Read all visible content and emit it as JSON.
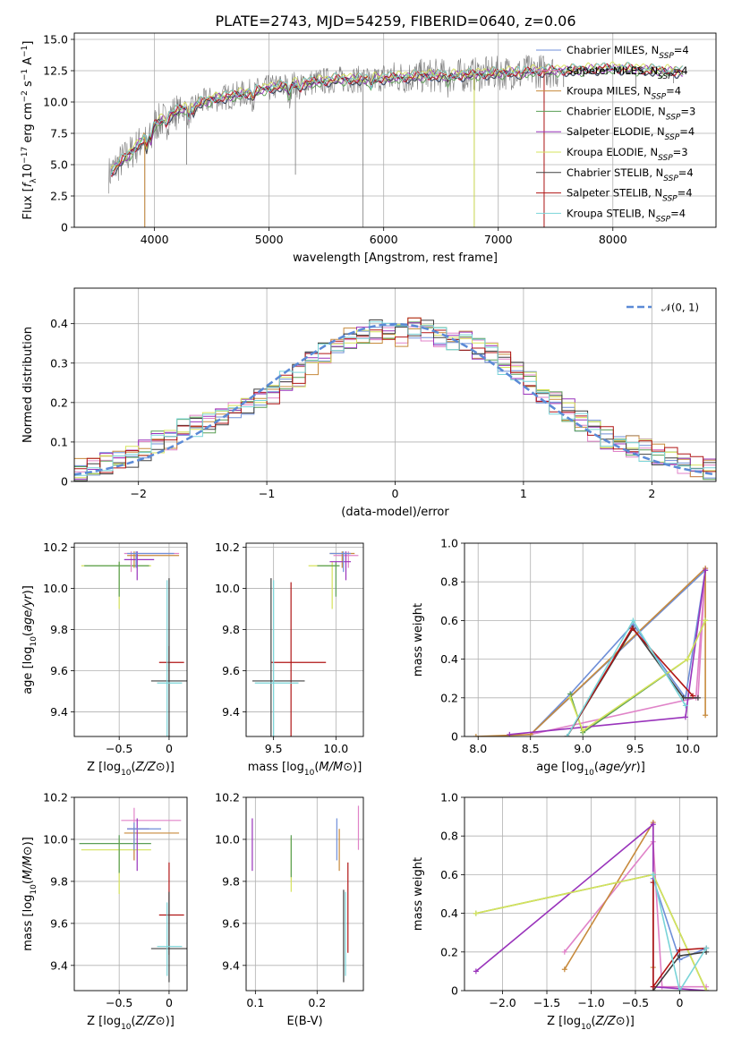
{
  "title": "PLATE=2743, MJD=54259, FIBERID=0640, z=0.06",
  "colors": {
    "Chabrier MILES": "#6f8fd8",
    "Salpeter MILES": "#e083c8",
    "Kroupa MILES": "#c78a3c",
    "Chabrier ELODIE": "#5a9e55",
    "Salpeter ELODIE": "#9933bb",
    "Kroupa ELODIE": "#d6e35c",
    "Chabrier STELIB": "#404040",
    "Salpeter STELIB": "#b01515",
    "Kroupa STELIB": "#79d4d8",
    "data": "#7a7a7a",
    "normal": "#5b8ad6",
    "grid": "#b0b0b0"
  },
  "chart_data": [
    {
      "type": "line",
      "panel": "spectrum",
      "xlabel": "wavelength [Angstrom, rest frame]",
      "ylabel": "Flux [f_λ 10^-17 erg cm^-2 s^-1 A^-1]",
      "xlim": [
        3300,
        8900
      ],
      "ylim": [
        0,
        15.5
      ],
      "xticks": [
        4000,
        5000,
        6000,
        7000,
        8000
      ],
      "yticks": [
        0.0,
        2.5,
        5.0,
        7.5,
        10.0,
        12.5,
        15.0
      ],
      "grid": true,
      "legend_position": "right",
      "legend": [
        {
          "name": "Chabrier MILES",
          "sub": "4"
        },
        {
          "name": "Salpeter MILES",
          "sub": "4"
        },
        {
          "name": "Kroupa MILES",
          "sub": "4"
        },
        {
          "name": "Chabrier ELODIE",
          "sub": "3"
        },
        {
          "name": "Salpeter ELODIE",
          "sub": "4"
        },
        {
          "name": "Kroupa ELODIE",
          "sub": "3"
        },
        {
          "name": "Chabrier STELIB",
          "sub": "4"
        },
        {
          "name": "Salpeter STELIB",
          "sub": "4"
        },
        {
          "name": "Kroupa STELIB",
          "sub": "4"
        }
      ],
      "legend_sub_prefix": ", N",
      "legend_sub_label": "SSP",
      "continuum": {
        "x": [
          3600,
          3700,
          3800,
          3900,
          4000,
          4200,
          4500,
          4800,
          5000,
          5200,
          5400,
          5600,
          5800,
          6000,
          6200,
          6400,
          6600,
          6800,
          7000,
          7200,
          7400,
          7600,
          7800,
          8000,
          8200,
          8400,
          8600
        ],
        "y": [
          4.2,
          5.2,
          6.0,
          7.0,
          8.2,
          9.3,
          10.2,
          10.7,
          11.1,
          11.4,
          11.6,
          11.8,
          11.8,
          11.9,
          12.0,
          12.1,
          12.1,
          12.2,
          12.3,
          12.4,
          12.5,
          12.5,
          12.6,
          12.7,
          12.6,
          12.5,
          12.4
        ]
      },
      "spikes": [
        {
          "x": 3915,
          "y": 0.0
        },
        {
          "x": 4280,
          "y": 5.0
        },
        {
          "x": 5230,
          "y": 4.2
        },
        {
          "x": 5820,
          "y": 0.0
        },
        {
          "x": 6790,
          "y": 0.0
        },
        {
          "x": 7400,
          "y": 0.0
        },
        {
          "x": 7570,
          "y": 11.2
        },
        {
          "x": 8200,
          "y": 11.0
        },
        {
          "x": 8530,
          "y": 11.5
        }
      ]
    },
    {
      "type": "step",
      "panel": "residuals",
      "xlabel": "(data-model)/error",
      "ylabel": "Normed distribution",
      "xlim": [
        -2.5,
        2.5
      ],
      "ylim": [
        0,
        0.49
      ],
      "xticks": [
        -2,
        -1,
        0,
        1,
        2
      ],
      "yticks": [
        0.0,
        0.1,
        0.2,
        0.3,
        0.4
      ],
      "grid": true,
      "legend_position": "upper right",
      "normal_label": "𝒩(0, 1)",
      "bin_edges": [
        -2.5,
        -2.4,
        -2.3,
        -2.2,
        -2.1,
        -2.0,
        -1.9,
        -1.8,
        -1.7,
        -1.6,
        -1.5,
        -1.4,
        -1.3,
        -1.2,
        -1.1,
        -1.0,
        -0.9,
        -0.8,
        -0.7,
        -0.6,
        -0.5,
        -0.4,
        -0.3,
        -0.2,
        -0.1,
        0.0,
        0.1,
        0.2,
        0.3,
        0.4,
        0.5,
        0.6,
        0.7,
        0.8,
        0.9,
        1.0,
        1.1,
        1.2,
        1.3,
        1.4,
        1.5,
        1.6,
        1.7,
        1.8,
        1.9,
        2.0,
        2.1,
        2.2,
        2.3,
        2.4,
        2.5
      ],
      "base_values": [
        0.03,
        0.035,
        0.045,
        0.05,
        0.06,
        0.08,
        0.1,
        0.11,
        0.13,
        0.14,
        0.15,
        0.17,
        0.18,
        0.2,
        0.21,
        0.22,
        0.25,
        0.27,
        0.3,
        0.33,
        0.35,
        0.36,
        0.37,
        0.38,
        0.39,
        0.37,
        0.39,
        0.38,
        0.37,
        0.36,
        0.36,
        0.34,
        0.33,
        0.3,
        0.28,
        0.25,
        0.22,
        0.2,
        0.18,
        0.15,
        0.13,
        0.11,
        0.1,
        0.09,
        0.08,
        0.07,
        0.06,
        0.05,
        0.04,
        0.03
      ]
    },
    {
      "type": "errorbar",
      "panel": "age-vs-Z",
      "xlabel": "Z [log10(Z/Z⊙)]",
      "ylabel": "age  [log10(age/yr)]",
      "xlim": [
        -0.95,
        0.18
      ],
      "ylim": [
        9.28,
        10.22
      ],
      "xticks": [
        -0.5,
        0.0
      ],
      "yticks": [
        9.4,
        9.6,
        9.8,
        10.0,
        10.2
      ],
      "grid": true,
      "points": [
        {
          "series": "Kroupa ELODIE",
          "x": -0.5,
          "y": 10.11,
          "xlo": -0.88,
          "xhi": -0.18,
          "ylo": 9.9,
          "yhi": 10.13
        },
        {
          "series": "Chabrier ELODIE",
          "x": -0.5,
          "y": 10.11,
          "xlo": -0.85,
          "xhi": -0.2,
          "ylo": 9.96,
          "yhi": 10.13
        },
        {
          "series": "Salpeter MILES",
          "x": -0.38,
          "y": 10.17,
          "xlo": -0.45,
          "xhi": 0.1,
          "ylo": 10.08,
          "yhi": 10.18
        },
        {
          "series": "Kroupa MILES",
          "x": -0.35,
          "y": 10.16,
          "xlo": -0.42,
          "xhi": 0.1,
          "ylo": 10.1,
          "yhi": 10.18
        },
        {
          "series": "Salpeter ELODIE",
          "x": -0.32,
          "y": 10.14,
          "xlo": -0.45,
          "xhi": -0.15,
          "ylo": 10.04,
          "yhi": 10.18
        },
        {
          "series": "Chabrier MILES",
          "x": -0.33,
          "y": 10.17,
          "xlo": -0.42,
          "xhi": 0.05,
          "ylo": 10.1,
          "yhi": 10.18
        },
        {
          "series": "Salpeter STELIB",
          "x": 0.0,
          "y": 9.64,
          "xlo": -0.1,
          "xhi": 0.15,
          "ylo": 9.55,
          "yhi": 9.72
        },
        {
          "series": "Chabrier STELIB",
          "x": 0.0,
          "y": 9.55,
          "xlo": -0.18,
          "xhi": 0.18,
          "ylo": 9.28,
          "yhi": 10.05
        },
        {
          "series": "Kroupa STELIB",
          "x": -0.02,
          "y": 9.54,
          "xlo": -0.12,
          "xhi": 0.13,
          "ylo": 9.27,
          "yhi": 10.04
        }
      ]
    },
    {
      "type": "errorbar",
      "panel": "age-vs-mass",
      "xlabel": "mass [log10(M/M⊙)]",
      "ylabel": "",
      "xlim": [
        9.28,
        10.22
      ],
      "ylim": [
        9.28,
        10.22
      ],
      "xticks": [
        9.5,
        10.0
      ],
      "yticks": [
        9.4,
        9.6,
        9.8,
        10.0,
        10.2
      ],
      "grid": true,
      "points": [
        {
          "series": "Kroupa ELODIE",
          "x": 9.97,
          "y": 10.11,
          "xlo": 9.78,
          "xhi": 10.02,
          "ylo": 9.9,
          "yhi": 10.13
        },
        {
          "series": "Chabrier ELODIE",
          "x": 10.0,
          "y": 10.11,
          "xlo": 9.85,
          "xhi": 10.03,
          "ylo": 9.96,
          "yhi": 10.13
        },
        {
          "series": "Salpeter MILES",
          "x": 10.1,
          "y": 10.16,
          "xlo": 9.98,
          "xhi": 10.18,
          "ylo": 10.1,
          "yhi": 10.18
        },
        {
          "series": "Kroupa MILES",
          "x": 10.05,
          "y": 10.17,
          "xlo": 9.95,
          "xhi": 10.15,
          "ylo": 10.1,
          "yhi": 10.18
        },
        {
          "series": "Salpeter ELODIE",
          "x": 10.08,
          "y": 10.13,
          "xlo": 9.95,
          "xhi": 10.12,
          "ylo": 10.04,
          "yhi": 10.18
        },
        {
          "series": "Chabrier MILES",
          "x": 10.06,
          "y": 10.17,
          "xlo": 9.95,
          "xhi": 10.12,
          "ylo": 10.08,
          "yhi": 10.18
        },
        {
          "series": "Salpeter STELIB",
          "x": 9.64,
          "y": 9.64,
          "xlo": 9.48,
          "xhi": 9.92,
          "ylo": 9.26,
          "yhi": 10.03
        },
        {
          "series": "Chabrier STELIB",
          "x": 9.48,
          "y": 9.55,
          "xlo": 9.33,
          "xhi": 9.75,
          "ylo": 9.28,
          "yhi": 10.05
        },
        {
          "series": "Kroupa STELIB",
          "x": 9.5,
          "y": 9.54,
          "xlo": 9.35,
          "xhi": 9.7,
          "ylo": 9.27,
          "yhi": 10.04
        }
      ]
    },
    {
      "type": "line",
      "panel": "weight-vs-age",
      "xlabel": "age  [log10(age/yr)]",
      "ylabel": "mass weight",
      "xlim": [
        7.87,
        10.28
      ],
      "ylim": [
        0,
        1.0
      ],
      "xticks": [
        8.0,
        8.5,
        9.0,
        9.5,
        10.0
      ],
      "yticks": [
        0.0,
        0.2,
        0.4,
        0.6,
        0.8,
        1.0
      ],
      "grid": true,
      "series": [
        {
          "name": "Chabrier MILES",
          "x": [
            8.5,
            10.17,
            9.98,
            9.48,
            8.88,
            8.5
          ],
          "y": [
            0.01,
            0.86,
            0.2,
            0.58,
            0.22,
            0.01
          ]
        },
        {
          "name": "Salpeter MILES",
          "x": [
            8.5,
            10.08,
            10.17,
            10.1
          ],
          "y": [
            0.01,
            0.2,
            0.87,
            0.2
          ]
        },
        {
          "name": "Kroupa MILES",
          "x": [
            7.98,
            8.5,
            10.17,
            10.17
          ],
          "y": [
            0.0,
            0.01,
            0.87,
            0.11
          ]
        },
        {
          "name": "Chabrier ELODIE",
          "x": [
            8.88,
            9.0,
            10.0,
            10.17
          ],
          "y": [
            0.22,
            0.02,
            0.4,
            0.6
          ]
        },
        {
          "name": "Salpeter ELODIE",
          "x": [
            8.3,
            9.98,
            10.17
          ],
          "y": [
            0.01,
            0.1,
            0.86
          ]
        },
        {
          "name": "Kroupa ELODIE",
          "x": [
            8.88,
            9.0,
            10.0,
            10.17
          ],
          "y": [
            0.2,
            0.03,
            0.4,
            0.6
          ]
        },
        {
          "name": "Chabrier STELIB",
          "x": [
            8.85,
            9.48,
            9.96,
            10.1
          ],
          "y": [
            0.0,
            0.56,
            0.2,
            0.2
          ]
        },
        {
          "name": "Salpeter STELIB",
          "x": [
            8.85,
            9.47,
            10.05
          ],
          "y": [
            0.0,
            0.56,
            0.21
          ]
        },
        {
          "name": "Kroupa STELIB",
          "x": [
            8.85,
            9.48,
            9.98
          ],
          "y": [
            0.0,
            0.6,
            0.16
          ]
        }
      ]
    },
    {
      "type": "errorbar",
      "panel": "mass-vs-Z",
      "xlabel": "Z [log10(Z/Z⊙)]",
      "ylabel": "mass [log10(M/M⊙)]",
      "xlim": [
        -0.95,
        0.18
      ],
      "ylim": [
        9.28,
        10.2
      ],
      "xticks": [
        -0.5,
        0.0
      ],
      "yticks": [
        9.4,
        9.6,
        9.8,
        10.0,
        10.2
      ],
      "grid": true,
      "points": [
        {
          "series": "Kroupa ELODIE",
          "x": -0.5,
          "y": 9.95,
          "xlo": -0.88,
          "xhi": -0.18,
          "ylo": 9.74,
          "yhi": 10.0
        },
        {
          "series": "Chabrier ELODIE",
          "x": -0.5,
          "y": 9.98,
          "xlo": -0.9,
          "xhi": -0.18,
          "ylo": 9.84,
          "yhi": 10.02
        },
        {
          "series": "Salpeter MILES",
          "x": -0.35,
          "y": 10.09,
          "xlo": -0.48,
          "xhi": 0.12,
          "ylo": 9.9,
          "yhi": 10.15
        },
        {
          "series": "Kroupa MILES",
          "x": -0.35,
          "y": 10.03,
          "xlo": -0.45,
          "xhi": 0.1,
          "ylo": 9.9,
          "yhi": 10.06
        },
        {
          "series": "Salpeter ELODIE",
          "x": -0.32,
          "y": 10.05,
          "xlo": -0.42,
          "xhi": -0.2,
          "ylo": 9.85,
          "yhi": 10.1
        },
        {
          "series": "Chabrier MILES",
          "x": -0.35,
          "y": 10.05,
          "xlo": -0.42,
          "xhi": -0.08,
          "ylo": 9.95,
          "yhi": 10.08
        },
        {
          "series": "Salpeter STELIB",
          "x": 0.0,
          "y": 9.64,
          "xlo": -0.1,
          "xhi": 0.15,
          "ylo": 9.45,
          "yhi": 9.89
        },
        {
          "series": "Chabrier STELIB",
          "x": 0.0,
          "y": 9.48,
          "xlo": -0.18,
          "xhi": 0.18,
          "ylo": 9.32,
          "yhi": 9.75
        },
        {
          "series": "Kroupa STELIB",
          "x": -0.02,
          "y": 9.49,
          "xlo": -0.12,
          "xhi": 0.13,
          "ylo": 9.35,
          "yhi": 9.7
        }
      ]
    },
    {
      "type": "errorbar",
      "panel": "mass-vs-EBV",
      "xlabel": "E(B-V)",
      "ylabel": "",
      "xlim": [
        0.085,
        0.275
      ],
      "ylim": [
        9.28,
        10.2
      ],
      "xticks": [
        0.1,
        0.2
      ],
      "yticks": [
        9.4,
        9.6,
        9.8,
        10.0,
        10.2
      ],
      "grid": true,
      "points": [
        {
          "series": "Salpeter ELODIE",
          "x": 0.095,
          "y": 10.0,
          "ylo": 9.85,
          "yhi": 10.1
        },
        {
          "series": "Kroupa ELODIE",
          "x": 0.158,
          "y": 9.9,
          "ylo": 9.75,
          "yhi": 10.01
        },
        {
          "series": "Chabrier ELODIE",
          "x": 0.158,
          "y": 9.95,
          "ylo": 9.82,
          "yhi": 10.02
        },
        {
          "series": "Chabrier MILES",
          "x": 0.232,
          "y": 10.0,
          "ylo": 9.9,
          "yhi": 10.1
        },
        {
          "series": "Kroupa MILES",
          "x": 0.236,
          "y": 9.95,
          "ylo": 9.85,
          "yhi": 10.05
        },
        {
          "series": "Salpeter MILES",
          "x": 0.267,
          "y": 10.05,
          "ylo": 9.95,
          "yhi": 10.16
        },
        {
          "series": "Chabrier STELIB",
          "x": 0.243,
          "y": 9.55,
          "ylo": 9.32,
          "yhi": 9.76
        },
        {
          "series": "Kroupa STELIB",
          "x": 0.246,
          "y": 9.55,
          "ylo": 9.35,
          "yhi": 9.75
        },
        {
          "series": "Salpeter STELIB",
          "x": 0.25,
          "y": 9.68,
          "ylo": 9.46,
          "yhi": 9.89
        }
      ]
    },
    {
      "type": "line",
      "panel": "weight-vs-Z",
      "xlabel": "Z [log10(Z/Z⊙)]",
      "ylabel": "mass weight",
      "xlim": [
        -2.43,
        0.42
      ],
      "ylim": [
        0,
        1.0
      ],
      "xticks": [
        -2.0,
        -1.5,
        -1.0,
        -0.5,
        0.0
      ],
      "yticks": [
        0.0,
        0.2,
        0.4,
        0.6,
        0.8,
        1.0
      ],
      "grid": true,
      "series": [
        {
          "name": "Chabrier MILES",
          "x": [
            -0.3,
            0.0,
            0.3
          ],
          "y": [
            0.58,
            0.16,
            0.22
          ]
        },
        {
          "name": "Salpeter MILES",
          "x": [
            -1.3,
            -0.3,
            -0.2,
            0.3
          ],
          "y": [
            0.2,
            0.77,
            0.02,
            0.02
          ]
        },
        {
          "name": "Kroupa MILES",
          "x": [
            -1.3,
            -0.3,
            -0.3
          ],
          "y": [
            0.11,
            0.87,
            0.12
          ]
        },
        {
          "name": "Chabrier ELODIE",
          "x": [
            -2.3,
            -0.3,
            0.3
          ],
          "y": [
            0.4,
            0.6,
            0.0
          ]
        },
        {
          "name": "Salpeter ELODIE",
          "x": [
            -2.3,
            -0.3,
            -0.3,
            0.3
          ],
          "y": [
            0.1,
            0.86,
            0.02,
            0.0
          ]
        },
        {
          "name": "Kroupa ELODIE",
          "x": [
            -2.3,
            -0.3,
            0.3
          ],
          "y": [
            0.4,
            0.6,
            0.0
          ]
        },
        {
          "name": "Chabrier STELIB",
          "x": [
            -0.3,
            -0.3,
            0.0,
            0.3
          ],
          "y": [
            0.56,
            0.0,
            0.18,
            0.2
          ]
        },
        {
          "name": "Salpeter STELIB",
          "x": [
            -0.3,
            -0.3,
            0.0,
            0.3
          ],
          "y": [
            0.56,
            0.02,
            0.21,
            0.22
          ]
        },
        {
          "name": "Kroupa STELIB",
          "x": [
            -0.3,
            0.0,
            0.3
          ],
          "y": [
            0.6,
            0.0,
            0.22
          ]
        }
      ]
    }
  ]
}
